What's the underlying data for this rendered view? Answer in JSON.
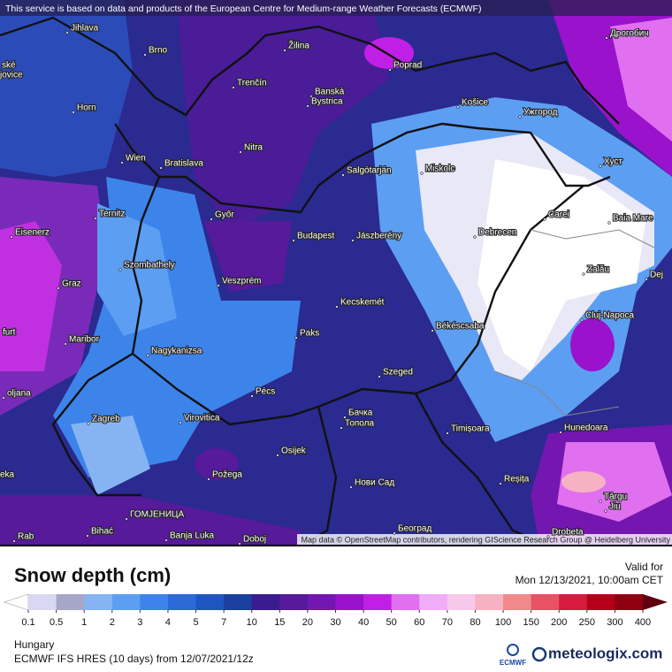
{
  "header": {
    "notice": "This service is based on data and products of the European Centre for Medium-range Weather Forecasts (ECMWF)"
  },
  "map": {
    "attribution": "Map data © OpenStreetMap contributors, rendering GIScience Research Group @ Heidelberg University",
    "cities": [
      "Jihlava",
      "Brno",
      "Žilina",
      "Poprad",
      "Дрогобич",
      "Horn",
      "Trenčín",
      "Banská",
      "Bystrica",
      "Košice",
      "Ужгород",
      "Wien",
      "Bratislava",
      "Nitra",
      "Salgótarján",
      "Miskolc",
      "Хуст",
      "Ternitz",
      "Győr",
      "Budapest",
      "Jászberény",
      "Debrecen",
      "Carei",
      "Baia Mare",
      "Eisenerz",
      "Szombathely",
      "Veszprém",
      "Zalău",
      "Graz",
      "Dej",
      "Kecskemét",
      "Cluj-Napoca",
      "Maribor",
      "Paks",
      "Békéscsaba",
      "Nagykanizsa",
      "Szeged",
      "furt",
      "Pécs",
      "oljana",
      "Virovitica",
      "Zagreb",
      "Бачка",
      "Топола",
      "Timișoara",
      "Hunedoara",
      "Osijek",
      "Požega",
      "Нови Сад",
      "Reșița",
      "Târgu",
      "Jiu",
      "ГОМЈЕНИЦА",
      "Bihać",
      "Banja Luka",
      "Doboj",
      "Београд",
      "Drobeta",
      "eka",
      "Rab",
      "ské",
      "jovice"
    ]
  },
  "legend": {
    "title": "Snow depth (cm)",
    "valid_label": "Valid for",
    "valid_time": "Mon 12/13/2021, 10:00am CET",
    "ticks": [
      0.1,
      0.5,
      1,
      2,
      3,
      4,
      5,
      7,
      10,
      15,
      20,
      30,
      40,
      50,
      60,
      70,
      80,
      100,
      150,
      200,
      250,
      300,
      400
    ],
    "colors": [
      "#ffffff",
      "#d8d8f2",
      "#a6a6c6",
      "#86b4f2",
      "#5c9ef2",
      "#3c84ea",
      "#2c6ad8",
      "#1f55bf",
      "#1a3f9e",
      "#3a1c8e",
      "#561a9a",
      "#7416b0",
      "#9a12cc",
      "#c020e6",
      "#e070f0",
      "#f0acf6",
      "#f6c8ea",
      "#f6b2c2",
      "#f08a8a",
      "#e85262",
      "#d61a40",
      "#b40018",
      "#8e0010",
      "#5e0010"
    ]
  },
  "footer": {
    "region": "Hungary",
    "model": "ECMWF IFS HRES (10 days) from 12/07/2021/12z",
    "logo_small": "ECMWF",
    "brand": "meteologix.com"
  }
}
